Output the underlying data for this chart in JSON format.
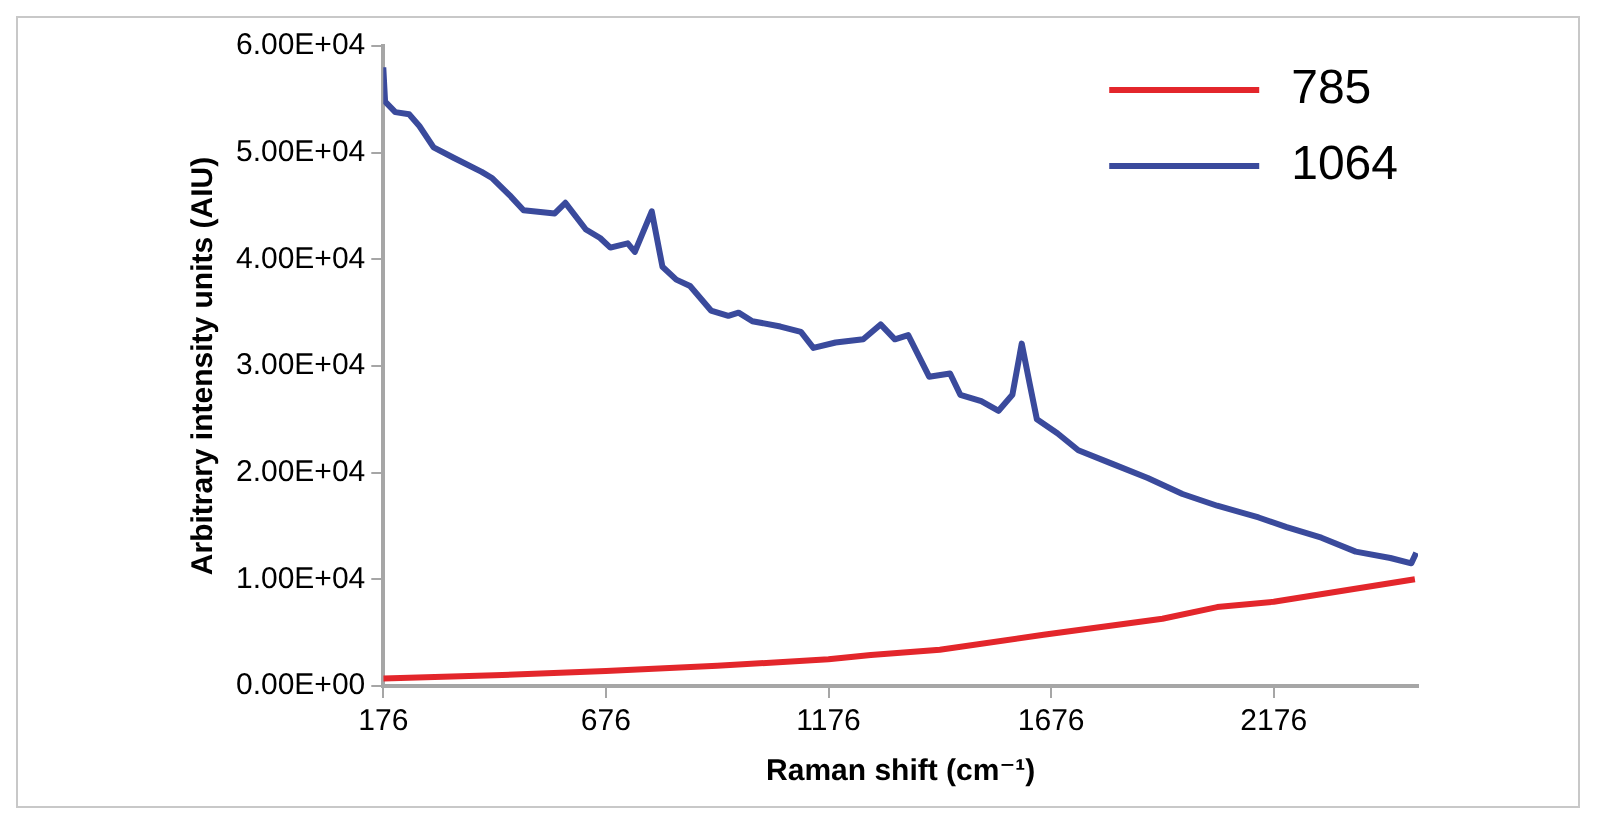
{
  "chart_data": {
    "type": "line",
    "xlabel": "Raman shift (cm⁻¹)",
    "ylabel": "Arbitrary intensity units (AIU)",
    "xlim": [
      176,
      2500
    ],
    "xticks": [
      176,
      676,
      1176,
      1676,
      2176
    ],
    "ylim": [
      0,
      60000
    ],
    "yticks": [
      {
        "value": 0,
        "label": "0.00E+00"
      },
      {
        "value": 10000,
        "label": "1.00E+04"
      },
      {
        "value": 20000,
        "label": "2.00E+04"
      },
      {
        "value": 30000,
        "label": "3.00E+04"
      },
      {
        "value": 40000,
        "label": "4.00E+04"
      },
      {
        "value": 50000,
        "label": "5.00E+04"
      },
      {
        "value": 60000,
        "label": "6.00E+04"
      }
    ],
    "grid": false,
    "legend": "top right",
    "marker": "none",
    "line_style": "solid",
    "series": [
      {
        "name": "785",
        "color": "#e3262b",
        "x": [
          176,
          426,
          676,
          926,
          1176,
          1271,
          1426,
          1659,
          1926,
          2049,
          2176,
          2493
        ],
        "values": [
          700,
          1000,
          1400,
          1900,
          2500,
          2900,
          3400,
          4800,
          6300,
          7400,
          7900,
          10000
        ]
      },
      {
        "name": "1064",
        "color": "#3a4a9c",
        "x": [
          176,
          180,
          203,
          234,
          257,
          289,
          335,
          397,
          421,
          460,
          491,
          561,
          585,
          631,
          663,
          686,
          725,
          741,
          779,
          803,
          834,
          865,
          912,
          951,
          974,
          1005,
          1068,
          1114,
          1142,
          1192,
          1254,
          1293,
          1325,
          1355,
          1402,
          1449,
          1472,
          1519,
          1558,
          1589,
          1610,
          1628,
          1644,
          1690,
          1737,
          1815,
          1893,
          1971,
          2049,
          2142,
          2205,
          2283,
          2360,
          2438,
          2485,
          2496
        ],
        "values": [
          58000,
          54800,
          53800,
          53600,
          52500,
          50500,
          49500,
          48200,
          47600,
          46000,
          44600,
          44300,
          45300,
          42800,
          42000,
          41100,
          41500,
          40700,
          44500,
          39300,
          38100,
          37500,
          35200,
          34700,
          35000,
          34200,
          33700,
          33200,
          31700,
          32200,
          32500,
          33900,
          32500,
          32900,
          29000,
          29300,
          27300,
          26700,
          25800,
          27300,
          32100,
          28300,
          25000,
          23700,
          22100,
          20800,
          19500,
          18000,
          16900,
          15800,
          14900,
          13900,
          12600,
          12000,
          11500,
          12500
        ]
      }
    ]
  }
}
